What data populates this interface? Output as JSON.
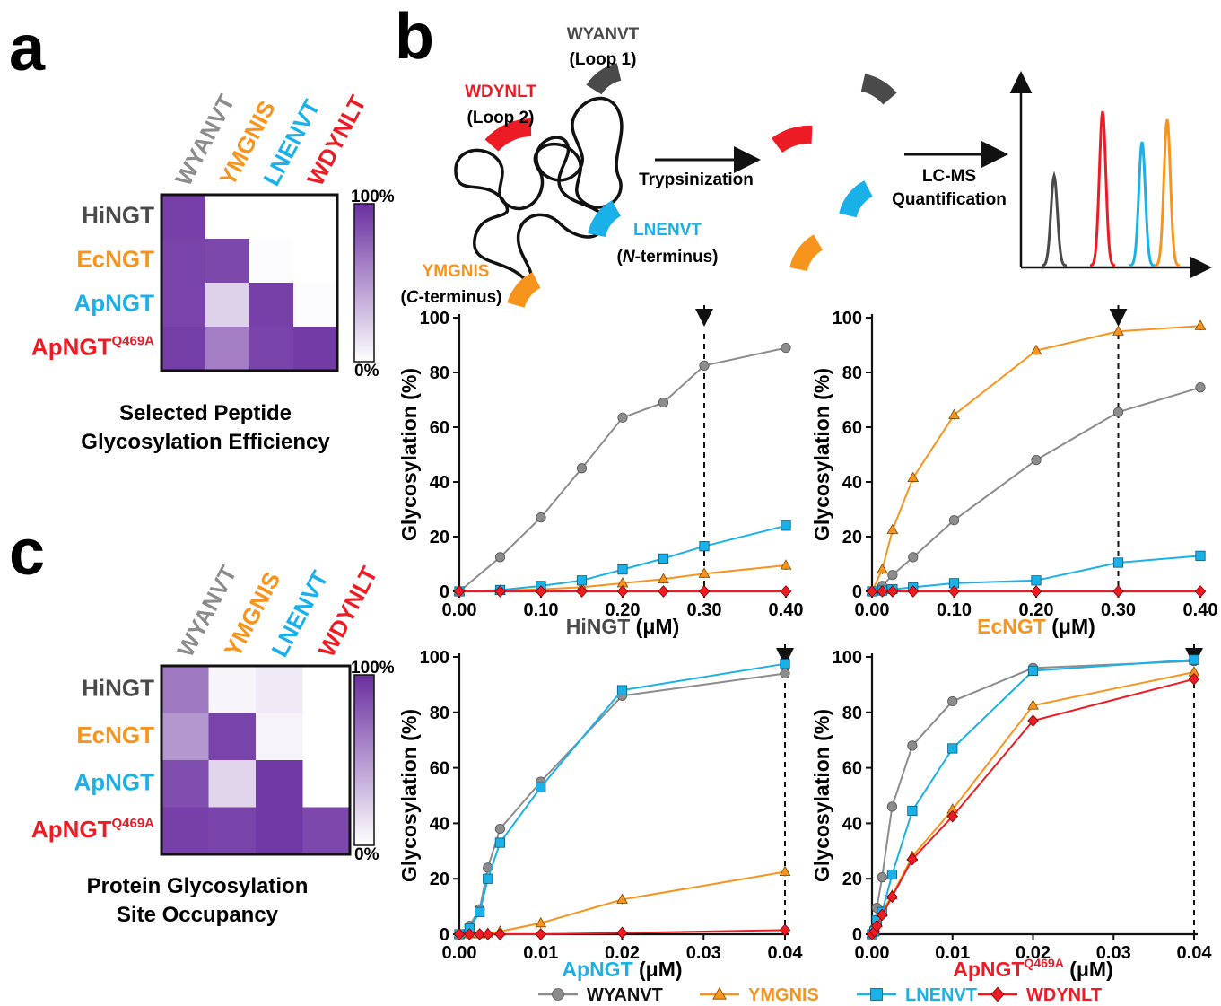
{
  "colors": {
    "WYANVT": "#8c8c8c",
    "YMGNIS": "#f7941d",
    "LNENVT": "#1ab0e8",
    "WDYNLT": "#ed1c24",
    "dark_label": "#4a4a4a",
    "heat": "#6a2fa0"
  },
  "panels": {
    "a": "a",
    "b": "b",
    "c": "c"
  },
  "heatmap_a": {
    "columns": [
      "WYANVT",
      "YMGNIS",
      "LNENVT",
      "WDYNLT"
    ],
    "rows": [
      "HiNGT",
      "EcNGT",
      "ApNGT",
      "ApNGT"
    ],
    "row_sup": [
      "",
      "",
      "",
      "Q469A"
    ],
    "values": [
      [
        0.92,
        0.0,
        0.0,
        0.0
      ],
      [
        0.9,
        0.88,
        0.02,
        0.0
      ],
      [
        0.9,
        0.22,
        0.92,
        0.02
      ],
      [
        0.93,
        0.62,
        0.9,
        0.94
      ]
    ],
    "colorbar_max": "100%",
    "colorbar_min": "0%",
    "caption_line1": "Selected Peptide",
    "caption_line2": "Glycosylation Efficiency"
  },
  "heatmap_c": {
    "columns": [
      "WYANVT",
      "YMGNIS",
      "LNENVT",
      "WDYNLT"
    ],
    "rows": [
      "HiNGT",
      "EcNGT",
      "ApNGT",
      "ApNGT"
    ],
    "row_sup": [
      "",
      "",
      "",
      "Q469A"
    ],
    "values": [
      [
        0.65,
        0.05,
        0.1,
        0.0
      ],
      [
        0.5,
        0.9,
        0.06,
        0.0
      ],
      [
        0.85,
        0.2,
        0.95,
        0.0
      ],
      [
        0.92,
        0.9,
        0.95,
        0.88
      ]
    ],
    "colorbar_max": "100%",
    "colorbar_min": "0%",
    "caption_line1": "Protein Glycosylation",
    "caption_line2": "Site Occupancy"
  },
  "schematic": {
    "loop1_name": "WYANVT",
    "loop1_sub": "(Loop 1)",
    "loop2_name": "WDYNLT",
    "loop2_sub": "(Loop 2)",
    "nterm_name": "LNENVT",
    "nterm_sub_open": "(",
    "nterm_sub_italic": "N",
    "nterm_sub_rest": "-terminus)",
    "cterm_name": "YMGNIS",
    "cterm_sub_open": "(",
    "cterm_sub_italic": "C",
    "cterm_sub_rest": "-terminus)",
    "step1": "Trypsinization",
    "step2_line1": "LC-MS",
    "step2_line2": "Quantification"
  },
  "chart_data": [
    {
      "type": "line",
      "panel": "b",
      "xlabel_main": "HiNGT",
      "xlabel_sup": "",
      "xlabel_unit": "(μM)",
      "xlabel_color": "#4a4a4a",
      "ylabel": "Glycosylation (%)",
      "xlim": [
        0,
        0.4
      ],
      "ylim": [
        0,
        100
      ],
      "xticks": [
        "0.00",
        "0.10",
        "0.20",
        "0.30",
        "0.40"
      ],
      "xtick_values": [
        0,
        0.1,
        0.2,
        0.3,
        0.4
      ],
      "yticks": [
        "0",
        "20",
        "40",
        "60",
        "80",
        "100"
      ],
      "ytick_values": [
        0,
        20,
        40,
        60,
        80,
        100
      ],
      "marker_x": 0.3,
      "series": [
        {
          "name": "WYANVT",
          "x": [
            0,
            0.05,
            0.1,
            0.15,
            0.2,
            0.25,
            0.3,
            0.4
          ],
          "y": [
            0,
            12.5,
            27,
            45,
            63.5,
            69,
            82.5,
            89
          ]
        },
        {
          "name": "YMGNIS",
          "x": [
            0,
            0.05,
            0.1,
            0.15,
            0.2,
            0.25,
            0.3,
            0.4
          ],
          "y": [
            0,
            0.3,
            0.8,
            1.5,
            3,
            4.5,
            6.5,
            9.5
          ]
        },
        {
          "name": "LNENVT",
          "x": [
            0,
            0.05,
            0.1,
            0.15,
            0.2,
            0.25,
            0.3,
            0.4
          ],
          "y": [
            0,
            0.5,
            2,
            4,
            8,
            12,
            16.5,
            24
          ]
        },
        {
          "name": "WDYNLT",
          "x": [
            0,
            0.05,
            0.1,
            0.15,
            0.2,
            0.25,
            0.3,
            0.4
          ],
          "y": [
            0,
            0,
            0,
            0,
            0,
            0,
            0,
            0
          ]
        }
      ]
    },
    {
      "type": "line",
      "panel": "b",
      "xlabel_main": "EcNGT",
      "xlabel_sup": "",
      "xlabel_unit": "(μM)",
      "xlabel_color": "#f7941d",
      "ylabel": "Glycosylation (%)",
      "xlim": [
        0,
        0.4
      ],
      "ylim": [
        0,
        100
      ],
      "xticks": [
        "0.00",
        "0.10",
        "0.20",
        "0.30",
        "0.40"
      ],
      "xtick_values": [
        0,
        0.1,
        0.2,
        0.3,
        0.4
      ],
      "yticks": [
        "0",
        "20",
        "40",
        "60",
        "80",
        "100"
      ],
      "ytick_values": [
        0,
        20,
        40,
        60,
        80,
        100
      ],
      "marker_x": 0.3,
      "series": [
        {
          "name": "WYANVT",
          "x": [
            0,
            0.0125,
            0.025,
            0.05,
            0.1,
            0.2,
            0.3,
            0.4
          ],
          "y": [
            0,
            2,
            6,
            12.5,
            26,
            48,
            65.5,
            74.5
          ]
        },
        {
          "name": "YMGNIS",
          "x": [
            0,
            0.0125,
            0.025,
            0.05,
            0.1,
            0.2,
            0.3,
            0.4
          ],
          "y": [
            0,
            8,
            22.5,
            41.5,
            64.5,
            88,
            95,
            97
          ]
        },
        {
          "name": "LNENVT",
          "x": [
            0,
            0.0125,
            0.025,
            0.05,
            0.1,
            0.2,
            0.3,
            0.4
          ],
          "y": [
            0,
            0.3,
            0.8,
            1.5,
            3,
            4,
            10.5,
            13
          ]
        },
        {
          "name": "WDYNLT",
          "x": [
            0,
            0.0125,
            0.025,
            0.05,
            0.1,
            0.2,
            0.3,
            0.4
          ],
          "y": [
            0,
            0,
            0,
            0,
            0,
            0,
            0,
            0
          ]
        }
      ]
    },
    {
      "type": "line",
      "panel": "b",
      "xlabel_main": "ApNGT",
      "xlabel_sup": "",
      "xlabel_unit": "(μM)",
      "xlabel_color": "#1ab0e8",
      "ylabel": "Glycosylation (%)",
      "xlim": [
        0,
        0.04
      ],
      "ylim": [
        0,
        100
      ],
      "xticks": [
        "0.00",
        "0.01",
        "0.02",
        "0.03",
        "0.04"
      ],
      "xtick_values": [
        0,
        0.01,
        0.02,
        0.03,
        0.04
      ],
      "yticks": [
        "0",
        "20",
        "40",
        "60",
        "80",
        "100"
      ],
      "ytick_values": [
        0,
        20,
        40,
        60,
        80,
        100
      ],
      "marker_x": 0.04,
      "series": [
        {
          "name": "WYANVT",
          "x": [
            0,
            0.00125,
            0.0025,
            0.0035,
            0.005,
            0.01,
            0.02,
            0.04
          ],
          "y": [
            0,
            3,
            9,
            24,
            38,
            55,
            86,
            94
          ]
        },
        {
          "name": "YMGNIS",
          "x": [
            0,
            0.00125,
            0.0025,
            0.0035,
            0.005,
            0.01,
            0.02,
            0.04
          ],
          "y": [
            0,
            0,
            0,
            0.3,
            1,
            4,
            12.5,
            22.5
          ]
        },
        {
          "name": "LNENVT",
          "x": [
            0,
            0.00125,
            0.0025,
            0.0035,
            0.005,
            0.01,
            0.02,
            0.04
          ],
          "y": [
            0,
            2,
            8,
            20,
            33,
            53,
            88,
            97.5
          ]
        },
        {
          "name": "WDYNLT",
          "x": [
            0,
            0.00125,
            0.0025,
            0.0035,
            0.005,
            0.01,
            0.02,
            0.04
          ],
          "y": [
            0,
            0,
            0,
            0,
            0,
            0,
            0.5,
            1.5
          ]
        }
      ]
    },
    {
      "type": "line",
      "panel": "b",
      "xlabel_main": "ApNGT",
      "xlabel_sup": "Q469A",
      "xlabel_unit": "(μM)",
      "xlabel_color": "#ed1c24",
      "ylabel": "Glycosylation (%)",
      "xlim": [
        0,
        0.04
      ],
      "ylim": [
        0,
        100
      ],
      "xticks": [
        "0.00",
        "0.01",
        "0.02",
        "0.03",
        "0.04"
      ],
      "xtick_values": [
        0,
        0.01,
        0.02,
        0.03,
        0.04
      ],
      "yticks": [
        "0",
        "20",
        "40",
        "60",
        "80",
        "100"
      ],
      "ytick_values": [
        0,
        20,
        40,
        60,
        80,
        100
      ],
      "marker_x": 0.04,
      "series": [
        {
          "name": "WYANVT",
          "x": [
            0,
            0.0003,
            0.0006,
            0.00125,
            0.0025,
            0.005,
            0.01,
            0.02,
            0.04
          ],
          "y": [
            0,
            2,
            9.5,
            20.5,
            46,
            68,
            84,
            96,
            98.5
          ]
        },
        {
          "name": "YMGNIS",
          "x": [
            0,
            0.0003,
            0.0006,
            0.00125,
            0.0025,
            0.005,
            0.01,
            0.02,
            0.04
          ],
          "y": [
            0,
            1,
            4,
            8,
            14,
            28,
            45,
            82.5,
            94.5
          ]
        },
        {
          "name": "LNENVT",
          "x": [
            0,
            0.0003,
            0.0006,
            0.00125,
            0.0025,
            0.005,
            0.01,
            0.02,
            0.04
          ],
          "y": [
            0,
            1,
            5,
            8,
            21.5,
            44.5,
            67,
            95,
            99
          ]
        },
        {
          "name": "WDYNLT",
          "x": [
            0,
            0.0003,
            0.0006,
            0.00125,
            0.0025,
            0.005,
            0.01,
            0.02,
            0.04
          ],
          "y": [
            0,
            1,
            3,
            7,
            13.5,
            27,
            42.5,
            77,
            92
          ]
        }
      ]
    }
  ],
  "legend": {
    "items": [
      {
        "name": "WYANVT",
        "marker": "circle"
      },
      {
        "name": "YMGNIS",
        "marker": "triangle"
      },
      {
        "name": "LNENVT",
        "marker": "square"
      },
      {
        "name": "WDYNLT",
        "marker": "diamond"
      }
    ]
  }
}
